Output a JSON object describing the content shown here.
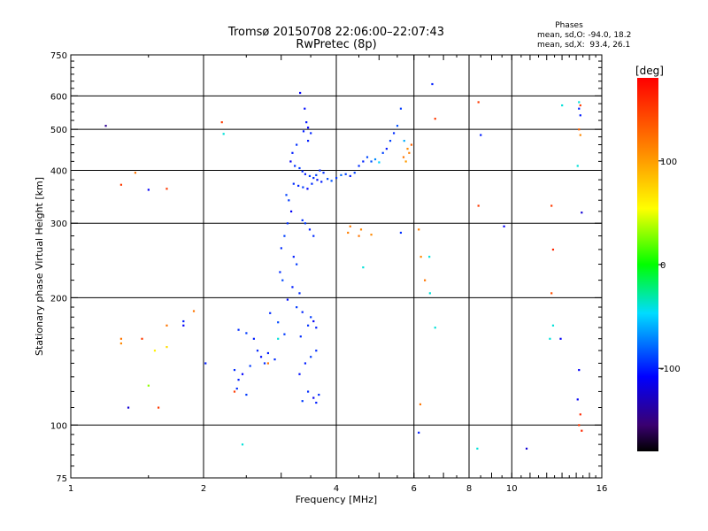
{
  "chart_data": {
    "type": "scatter",
    "title": "Tromsø 20150708 22:06:00–22:07:43",
    "subtitle": "RwPretec (8p)",
    "stats": {
      "heading": "Phases",
      "line1": "mean, sd,O: -94.0, 18.2",
      "line2": "mean, sd,X:  93.4, 26.1"
    },
    "xlabel": "Frequency [MHz]",
    "ylabel": "Stationary phase Virtual Height [km]",
    "xscale": "log2",
    "yscale": "log",
    "xlim": [
      1,
      16
    ],
    "ylim": [
      75,
      750
    ],
    "xticks": [
      1,
      2,
      4,
      6,
      8,
      10,
      16
    ],
    "xtick_labels": [
      "1",
      "2",
      "4",
      "6",
      "8",
      "10",
      "16"
    ],
    "yticks": [
      75,
      100,
      200,
      300,
      400,
      500,
      600,
      750
    ],
    "ytick_labels": [
      "75",
      "100",
      "200",
      "300",
      "400",
      "500",
      "600",
      "750"
    ],
    "xgrid": [
      2,
      4,
      6,
      8,
      10
    ],
    "ygrid": [
      100,
      200,
      300,
      400,
      500,
      600
    ],
    "grid": true,
    "colorbar": {
      "label": "[deg]",
      "range": [
        -180,
        180
      ],
      "ticks": [
        100,
        0,
        -100
      ],
      "tick_labels": [
        "100",
        "0",
        "-100"
      ]
    },
    "series": [
      {
        "marker": "dot",
        "points": [
          [
            3.31,
            610,
            -110
          ],
          [
            3.39,
            560,
            -105
          ],
          [
            3.42,
            520,
            -102
          ],
          [
            3.45,
            505,
            -108
          ],
          [
            3.37,
            495,
            -100
          ],
          [
            3.5,
            490,
            -98
          ],
          [
            3.25,
            460,
            -95
          ],
          [
            3.18,
            440,
            -100
          ],
          [
            3.15,
            420,
            -112
          ],
          [
            3.22,
            410,
            -95
          ],
          [
            3.3,
            405,
            -92
          ],
          [
            3.35,
            398,
            -96
          ],
          [
            3.4,
            392,
            -100
          ],
          [
            3.48,
            388,
            -92
          ],
          [
            3.55,
            384,
            -96
          ],
          [
            3.62,
            380,
            -104
          ],
          [
            3.7,
            376,
            -100
          ],
          [
            3.2,
            372,
            -96
          ],
          [
            3.28,
            368,
            -98
          ],
          [
            3.36,
            365,
            -92
          ],
          [
            3.44,
            362,
            -108
          ],
          [
            3.52,
            372,
            -96
          ],
          [
            3.6,
            390,
            -90
          ],
          [
            3.67,
            400,
            -98
          ],
          [
            3.74,
            395,
            -95
          ],
          [
            3.82,
            382,
            -88
          ],
          [
            3.9,
            378,
            -85
          ],
          [
            4.0,
            384,
            -92
          ],
          [
            4.1,
            390,
            -80
          ],
          [
            4.2,
            392,
            -90
          ],
          [
            4.3,
            388,
            -100
          ],
          [
            4.4,
            395,
            -90
          ],
          [
            4.5,
            410,
            -96
          ],
          [
            4.6,
            420,
            -98
          ],
          [
            4.7,
            430,
            -88
          ],
          [
            4.8,
            420,
            -85
          ],
          [
            4.9,
            425,
            -70
          ],
          [
            5.0,
            418,
            -50
          ],
          [
            5.1,
            440,
            -90
          ],
          [
            5.2,
            450,
            -102
          ],
          [
            5.3,
            470,
            -90
          ],
          [
            5.4,
            490,
            -96
          ],
          [
            5.5,
            510,
            -86
          ],
          [
            5.6,
            560,
            -92
          ],
          [
            5.7,
            470,
            -60
          ],
          [
            5.8,
            450,
            110
          ],
          [
            5.85,
            440,
            115
          ],
          [
            5.92,
            460,
            130
          ],
          [
            5.68,
            430,
            120
          ],
          [
            5.75,
            420,
            100
          ],
          [
            3.08,
            350,
            -90
          ],
          [
            3.12,
            340,
            -92
          ],
          [
            3.16,
            320,
            -110
          ],
          [
            3.1,
            300,
            -95
          ],
          [
            3.05,
            280,
            -90
          ],
          [
            3.0,
            262,
            -96
          ],
          [
            3.2,
            250,
            -100
          ],
          [
            3.25,
            240,
            -92
          ],
          [
            2.98,
            230,
            -96
          ],
          [
            3.02,
            220,
            -88
          ],
          [
            3.18,
            212,
            -100
          ],
          [
            3.3,
            205,
            -96
          ],
          [
            3.1,
            198,
            -104
          ],
          [
            3.25,
            190,
            -92
          ],
          [
            3.35,
            185,
            -98
          ],
          [
            3.5,
            180,
            -92
          ],
          [
            3.55,
            176,
            -110
          ],
          [
            3.32,
            162,
            -96
          ],
          [
            3.45,
            172,
            -94
          ],
          [
            3.6,
            150,
            -96
          ],
          [
            3.5,
            145,
            -92
          ],
          [
            3.4,
            140,
            -100
          ],
          [
            3.3,
            132,
            -104
          ],
          [
            3.45,
            120,
            -96
          ],
          [
            3.55,
            116,
            -112
          ],
          [
            3.35,
            114,
            -92
          ],
          [
            3.6,
            113,
            -100
          ],
          [
            3.65,
            118,
            -96
          ],
          [
            2.4,
            168,
            -96
          ],
          [
            2.5,
            165,
            -92
          ],
          [
            2.6,
            160,
            -100
          ],
          [
            2.65,
            150,
            -98
          ],
          [
            2.7,
            145,
            -104
          ],
          [
            2.75,
            140,
            -96
          ],
          [
            2.55,
            138,
            -92
          ],
          [
            2.45,
            132,
            -108
          ],
          [
            2.4,
            128,
            -100
          ],
          [
            2.38,
            122,
            -96
          ],
          [
            2.5,
            118,
            -92
          ],
          [
            2.8,
            148,
            -100
          ],
          [
            2.9,
            143,
            -96
          ],
          [
            2.95,
            160,
            -40
          ],
          [
            2.35,
            135,
            -96
          ],
          [
            2.02,
            140,
            -100
          ],
          [
            2.83,
            184,
            -96
          ],
          [
            3.05,
            164,
            -92
          ],
          [
            2.95,
            175,
            -88
          ],
          [
            4.8,
            282,
            110
          ],
          [
            4.5,
            280,
            120
          ],
          [
            4.55,
            290,
            112
          ],
          [
            4.3,
            295,
            118
          ],
          [
            4.25,
            285,
            115
          ],
          [
            6.15,
            290,
            115
          ],
          [
            6.22,
            250,
            110
          ],
          [
            6.35,
            220,
            120
          ],
          [
            5.6,
            285,
            -95
          ],
          [
            4.6,
            236,
            -40
          ],
          [
            6.5,
            250,
            -40
          ],
          [
            6.52,
            205,
            -40
          ],
          [
            6.2,
            112,
            120
          ],
          [
            6.15,
            96,
            -100
          ],
          [
            6.7,
            170,
            -40
          ],
          [
            6.6,
            640,
            -100
          ],
          [
            6.7,
            530,
            150
          ],
          [
            8.4,
            580,
            150
          ],
          [
            8.5,
            485,
            -100
          ],
          [
            8.4,
            330,
            150
          ],
          [
            8.35,
            88,
            -40
          ],
          [
            9.6,
            295,
            -110
          ],
          [
            10.8,
            88,
            -120
          ],
          [
            12.3,
            330,
            150
          ],
          [
            12.4,
            260,
            160
          ],
          [
            12.3,
            205,
            140
          ],
          [
            12.4,
            172,
            -40
          ],
          [
            12.2,
            160,
            -40
          ],
          [
            12.9,
            160,
            -110
          ],
          [
            14.2,
            580,
            -40
          ],
          [
            14.3,
            570,
            150
          ],
          [
            14.2,
            560,
            -100
          ],
          [
            14.3,
            540,
            -100
          ],
          [
            14.2,
            500,
            130
          ],
          [
            14.3,
            485,
            110
          ],
          [
            14.1,
            410,
            -40
          ],
          [
            14.4,
            318,
            -120
          ],
          [
            14.2,
            135,
            -110
          ],
          [
            14.1,
            115,
            -110
          ],
          [
            14.3,
            106,
            160
          ],
          [
            14.2,
            100,
            150
          ],
          [
            14.4,
            97,
            160
          ],
          [
            13.0,
            570,
            -40
          ],
          [
            1.3,
            370,
            150
          ],
          [
            1.4,
            395,
            120
          ],
          [
            1.5,
            360,
            -110
          ],
          [
            1.65,
            362,
            150
          ],
          [
            1.3,
            160,
            120
          ],
          [
            1.3,
            156,
            110
          ],
          [
            1.45,
            160,
            150
          ],
          [
            1.65,
            172,
            120
          ],
          [
            1.65,
            153,
            70
          ],
          [
            1.55,
            150,
            60
          ],
          [
            1.5,
            124,
            30
          ],
          [
            1.8,
            176,
            -100
          ],
          [
            1.8,
            172,
            -110
          ],
          [
            1.9,
            186,
            120
          ],
          [
            1.58,
            110,
            150
          ],
          [
            1.35,
            110,
            -120
          ],
          [
            1.2,
            510,
            -140
          ],
          [
            2.2,
            520,
            150
          ],
          [
            2.22,
            488,
            -40
          ],
          [
            2.35,
            120,
            150
          ],
          [
            2.8,
            140,
            120
          ],
          [
            2.45,
            90,
            -40
          ],
          [
            3.45,
            470,
            -100
          ],
          [
            3.6,
            170,
            -100
          ],
          [
            3.35,
            305,
            -96
          ],
          [
            3.4,
            300,
            -92
          ],
          [
            3.48,
            290,
            -100
          ],
          [
            3.55,
            280,
            -96
          ]
        ]
      }
    ]
  }
}
